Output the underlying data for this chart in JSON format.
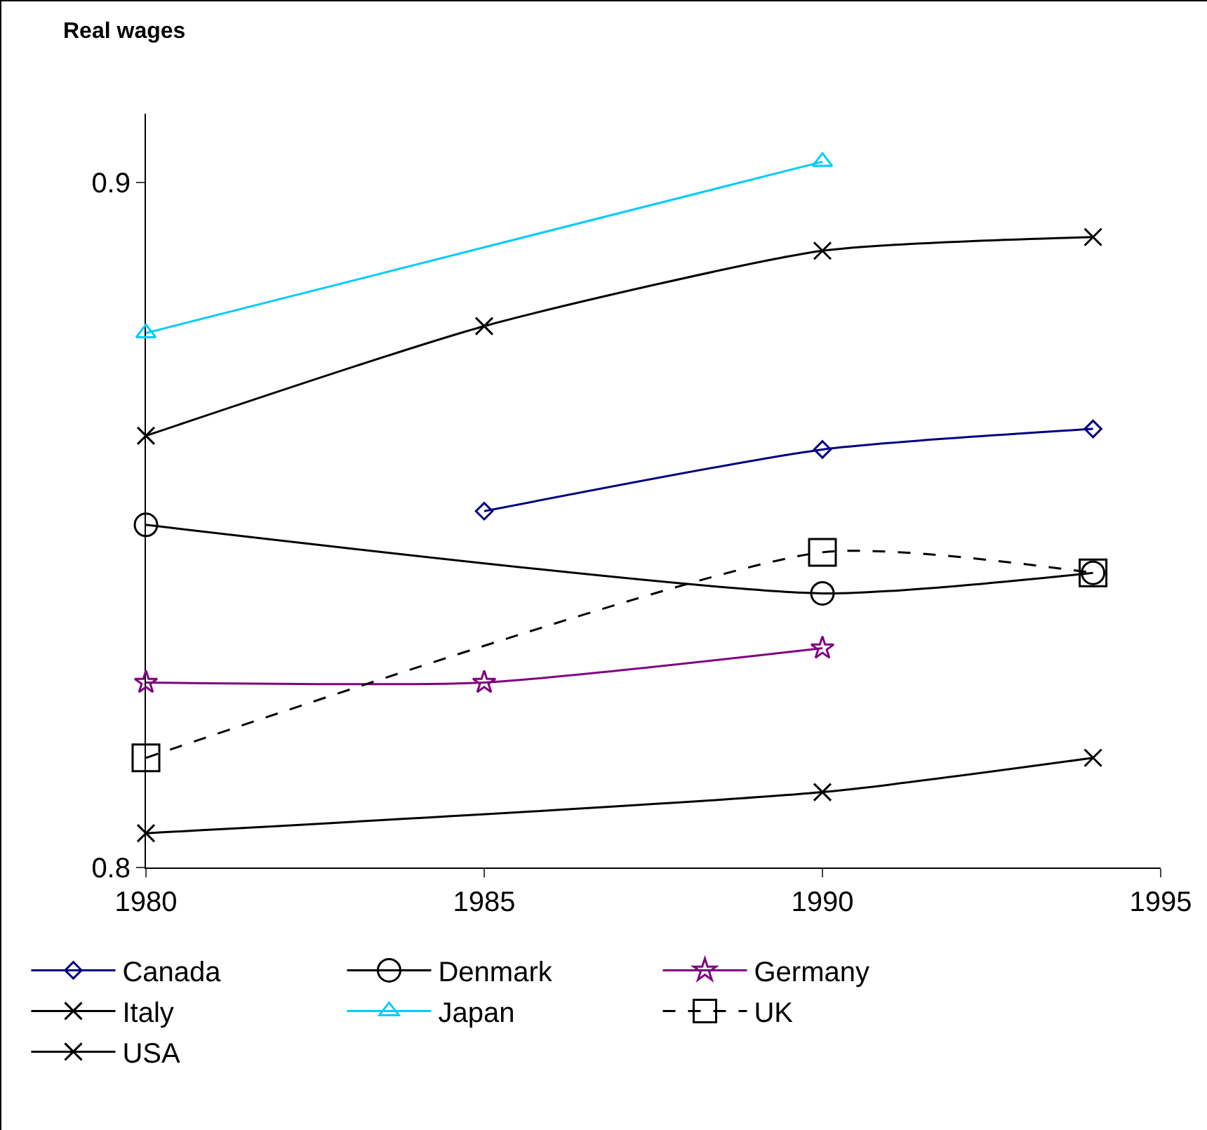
{
  "chart_data": {
    "type": "line",
    "ylabel": "Real wages",
    "x": [
      1980,
      1985,
      1990,
      1994
    ],
    "xlim": [
      1980,
      1995
    ],
    "xticks": [
      1980,
      1985,
      1990,
      1995
    ],
    "ylim": [
      0.8,
      0.91
    ],
    "yticks": [
      0.8,
      0.9
    ],
    "legend": "bottom",
    "series": [
      {
        "name": "Canada",
        "color": "#000080",
        "marker": "diamond",
        "values": [
          null,
          0.852,
          0.861,
          0.864
        ]
      },
      {
        "name": "Denmark",
        "color": "#000000",
        "marker": "circle",
        "values": [
          0.85,
          null,
          0.84,
          0.843
        ]
      },
      {
        "name": "Germany",
        "color": "#800080",
        "marker": "star",
        "values": [
          0.827,
          0.827,
          0.832,
          null
        ]
      },
      {
        "name": "Italy",
        "color": "#000000",
        "marker": "cross",
        "values": [
          0.805,
          null,
          0.811,
          0.816
        ]
      },
      {
        "name": "Japan",
        "color": "#00ccff",
        "marker": "triangle",
        "values": [
          0.878,
          null,
          0.903,
          null
        ]
      },
      {
        "name": "UK",
        "color": "#000000",
        "marker": "square",
        "line_style": "dashed",
        "values": [
          0.816,
          null,
          0.846,
          0.843
        ]
      },
      {
        "name": "USA",
        "color": "#000000",
        "marker": "cross",
        "values": [
          0.863,
          0.879,
          0.89,
          0.892
        ]
      }
    ]
  }
}
